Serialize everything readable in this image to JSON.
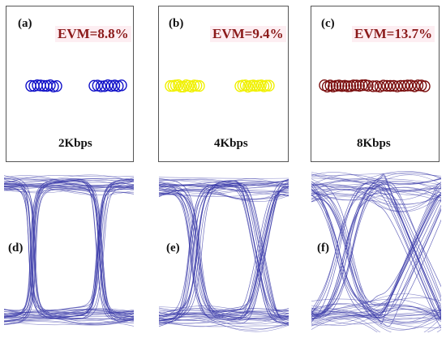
{
  "constellations": [
    {
      "label": "(a)",
      "evm": "EVM=8.8%",
      "rate": "2Kbps",
      "color": "#1010c8"
    },
    {
      "label": "(b)",
      "evm": "EVM=9.4%",
      "rate": "4Kbps",
      "color": "#f0f000"
    },
    {
      "label": "(c)",
      "evm": "EVM=13.7%",
      "rate": "8Kbps",
      "color": "#7a0d0d"
    }
  ],
  "eye_diagrams": [
    {
      "label": "(d)",
      "color": "#3a3aa8"
    },
    {
      "label": "(e)",
      "color": "#3a3aa8"
    },
    {
      "label": "(f)",
      "color": "#3a3aa8"
    }
  ]
}
